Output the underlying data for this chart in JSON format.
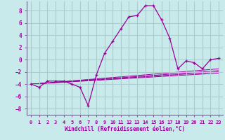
{
  "xlabel": "Windchill (Refroidissement éolien,°C)",
  "bg_color": "#c8eaea",
  "line_color": "#990099",
  "grid_color": "#aacccc",
  "xlim": [
    -0.5,
    23.5
  ],
  "ylim": [
    -9,
    9.5
  ],
  "xticks": [
    0,
    1,
    2,
    3,
    4,
    5,
    6,
    7,
    8,
    9,
    10,
    11,
    12,
    13,
    14,
    15,
    16,
    17,
    18,
    19,
    20,
    21,
    22,
    23
  ],
  "yticks": [
    -8,
    -6,
    -4,
    -2,
    0,
    2,
    4,
    6,
    8
  ],
  "series": [
    [
      0,
      -4.0
    ],
    [
      1,
      -4.5
    ],
    [
      2,
      -3.5
    ],
    [
      3,
      -3.5
    ],
    [
      4,
      -3.5
    ],
    [
      5,
      -4.0
    ],
    [
      6,
      -4.5
    ],
    [
      7,
      -7.5
    ],
    [
      8,
      -2.5
    ],
    [
      9,
      1.0
    ],
    [
      10,
      3.0
    ],
    [
      11,
      5.0
    ],
    [
      12,
      7.0
    ],
    [
      13,
      7.2
    ],
    [
      14,
      8.8
    ],
    [
      15,
      8.8
    ],
    [
      16,
      6.5
    ],
    [
      17,
      3.5
    ],
    [
      18,
      -1.5
    ],
    [
      19,
      -0.2
    ],
    [
      20,
      -0.5
    ],
    [
      21,
      -1.5
    ],
    [
      22,
      0.0
    ],
    [
      23,
      0.2
    ]
  ],
  "extra_lines": [
    [
      [
        0,
        23
      ],
      [
        -4.0,
        -2.2
      ]
    ],
    [
      [
        0,
        23
      ],
      [
        -4.0,
        -2.0
      ]
    ],
    [
      [
        0,
        23
      ],
      [
        -4.0,
        -1.8
      ]
    ],
    [
      [
        0,
        23
      ],
      [
        -4.0,
        -1.5
      ]
    ]
  ]
}
